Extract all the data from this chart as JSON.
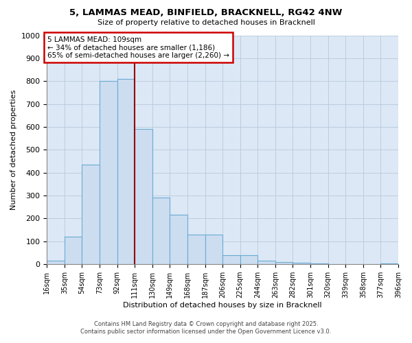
{
  "title": "5, LAMMAS MEAD, BINFIELD, BRACKNELL, RG42 4NW",
  "subtitle": "Size of property relative to detached houses in Bracknell",
  "xlabel": "Distribution of detached houses by size in Bracknell",
  "ylabel": "Number of detached properties",
  "bar_color": "#ccddf0",
  "bar_edge_color": "#6aaad4",
  "grid_color": "#b8c8dc",
  "background_color": "#dce8f5",
  "fig_background": "#ffffff",
  "annotation_text": "5 LAMMAS MEAD: 109sqm\n← 34% of detached houses are smaller (1,186)\n65% of semi-detached houses are larger (2,260) →",
  "vline_x": 111,
  "vline_color": "#990000",
  "bin_edges": [
    16,
    35,
    54,
    73,
    92,
    111,
    130,
    149,
    168,
    187,
    206,
    225,
    244,
    263,
    282,
    301,
    320,
    339,
    358,
    377,
    396
  ],
  "bin_labels": [
    "16sqm",
    "35sqm",
    "54sqm",
    "73sqm",
    "92sqm",
    "111sqm",
    "130sqm",
    "149sqm",
    "168sqm",
    "187sqm",
    "206sqm",
    "225sqm",
    "244sqm",
    "263sqm",
    "282sqm",
    "301sqm",
    "320sqm",
    "339sqm",
    "358sqm",
    "377sqm",
    "396sqm"
  ],
  "counts": [
    15,
    120,
    435,
    800,
    810,
    590,
    290,
    215,
    130,
    130,
    40,
    40,
    15,
    10,
    8,
    5,
    2,
    0,
    0,
    5
  ],
  "ylim": [
    0,
    1000
  ],
  "yticks": [
    0,
    100,
    200,
    300,
    400,
    500,
    600,
    700,
    800,
    900,
    1000
  ],
  "footer_line1": "Contains HM Land Registry data © Crown copyright and database right 2025.",
  "footer_line2": "Contains public sector information licensed under the Open Government Licence v3.0.",
  "annotation_box_edge": "#cc0000",
  "annotation_box_face": "#ffffff"
}
